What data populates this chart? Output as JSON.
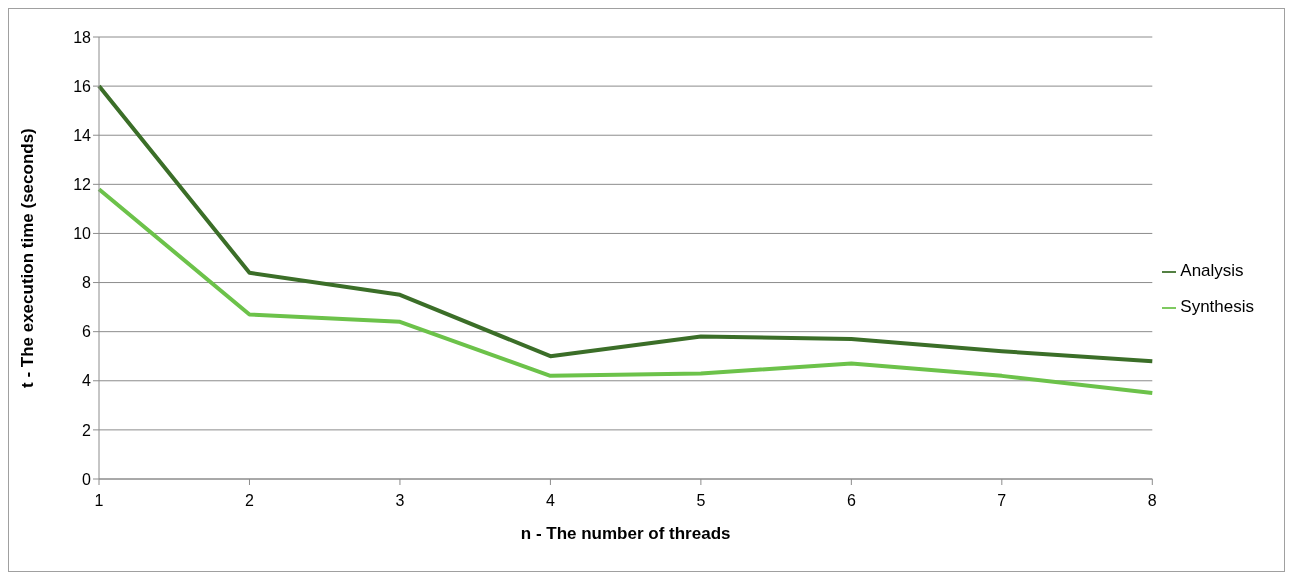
{
  "chart_data": {
    "type": "line",
    "xlabel": "n - The number of threads",
    "ylabel": "t - The execution time (seconds)",
    "categories": [
      "1",
      "2",
      "3",
      "4",
      "5",
      "6",
      "7",
      "8"
    ],
    "series": [
      {
        "name": "Analysis",
        "color": "#3b6e28",
        "values": [
          16.0,
          8.4,
          7.5,
          5.0,
          5.8,
          5.7,
          5.2,
          4.8
        ]
      },
      {
        "name": "Synthesis",
        "color": "#6cc24a",
        "values": [
          11.8,
          6.7,
          6.4,
          4.2,
          4.3,
          4.7,
          4.2,
          3.5
        ]
      }
    ],
    "ylim": [
      0,
      18
    ],
    "yticks": [
      0,
      2,
      4,
      6,
      8,
      10,
      12,
      14,
      16,
      18
    ],
    "grid": "y",
    "legend": "right",
    "marker": "none",
    "line_style": "solid"
  }
}
